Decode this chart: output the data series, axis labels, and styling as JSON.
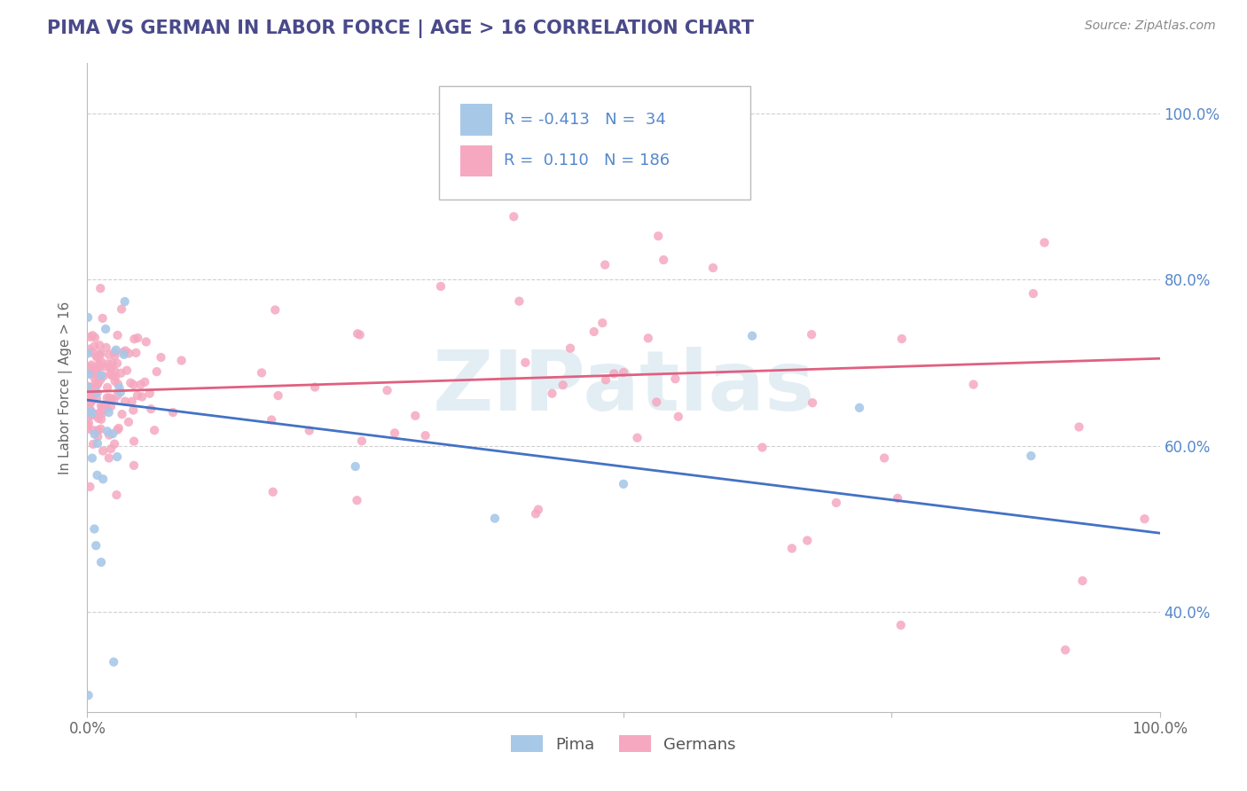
{
  "title": "PIMA VS GERMAN IN LABOR FORCE | AGE > 16 CORRELATION CHART",
  "source": "Source: ZipAtlas.com",
  "ylabel": "In Labor Force | Age > 16",
  "xlim": [
    0.0,
    1.0
  ],
  "ylim": [
    0.28,
    1.06
  ],
  "yticks": [
    0.4,
    0.6,
    0.8,
    1.0
  ],
  "pima_color": "#a8c8e8",
  "german_color": "#f5a8c0",
  "pima_line_color": "#4472c4",
  "german_line_color": "#e06080",
  "title_color": "#4a4a8a",
  "title_fontsize": 15,
  "legend_R_pima": "-0.413",
  "legend_N_pima": "34",
  "legend_R_german": "0.110",
  "legend_N_german": "186",
  "watermark_text": "ZIPatlas",
  "background_color": "#ffffff",
  "grid_color": "#d0d0d0",
  "source_color": "#888888",
  "label_color": "#5588cc"
}
